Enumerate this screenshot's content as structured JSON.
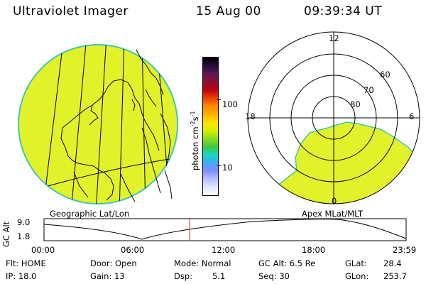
{
  "header": {
    "instrument": "Ultraviolet Imager",
    "date": "15 Aug 00",
    "time": "09:39:34 UT"
  },
  "colorbar": {
    "unit": "photon cm",
    "unit_exp1": "-2",
    "unit_mid": "s",
    "unit_exp2": "-1",
    "ticks": [
      "100",
      "10"
    ],
    "colors": [
      "#000000",
      "#2a0d3a",
      "#5a1a5a",
      "#8a1030",
      "#c00010",
      "#e84000",
      "#ff8800",
      "#ffb000",
      "#ffe000",
      "#d8f000",
      "#88e020",
      "#40c840",
      "#18d8c0",
      "#40a8ff",
      "#8090ff",
      "#b8c0ff",
      "#e0e8ff",
      "#ffffff"
    ]
  },
  "polar": {
    "mlt_labels": {
      "top": "12",
      "left": "18",
      "right": "6",
      "bottom": "0"
    },
    "lat_labels": [
      "60",
      "70",
      "80"
    ]
  },
  "panel_labels": {
    "left": "Geographic Lat/Lon",
    "right": "Apex MLat/MLT"
  },
  "altitude_plot": {
    "ylabel": "GC Alt",
    "yticks": [
      "9.0",
      "1.8"
    ],
    "xticks": [
      "00:00",
      "06:00",
      "12:00",
      "18:00",
      "23:59"
    ]
  },
  "footer": {
    "flt": "Flt: HOME",
    "ip": "IP: 18.0",
    "door": "Door: Open",
    "gain": "Gain: 13",
    "mode": "Mode: Normal",
    "dsp_label": "Dsp:",
    "dsp_value": "5.1",
    "gcalt": "GC Alt: 6.5 Re",
    "seq": "Seq: 30",
    "glat_label": "GLat:",
    "glat_value": "28.4",
    "glon_label": "GLon:",
    "glon_value": "253.7"
  },
  "style": {
    "image_fill": "#e2f22a",
    "image_edge": "#40c8b0",
    "marker": "#d02020"
  }
}
